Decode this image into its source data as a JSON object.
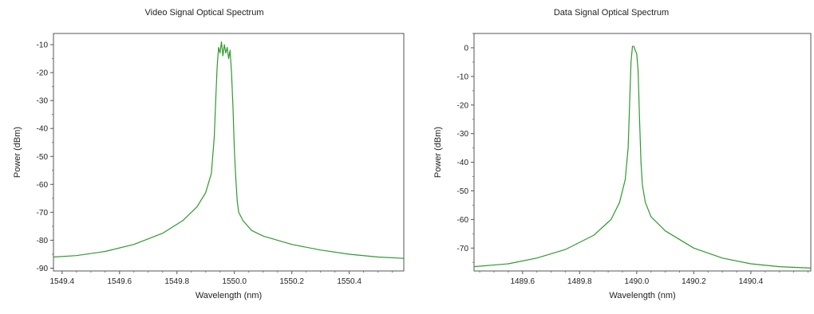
{
  "chart_data": [
    {
      "type": "line",
      "title": "Video Signal Optical Spectrum",
      "xlabel": "Wavelength (nm)",
      "ylabel": "Power (dBm)",
      "xlim": [
        1549.37,
        1550.59
      ],
      "ylim": [
        -91,
        -6
      ],
      "xticks": [
        1549.4,
        1549.6,
        1549.8,
        1550.0,
        1550.2,
        1550.4
      ],
      "xtick_labels": [
        "1549.4",
        "1549.6",
        "1549.8",
        "1550.0",
        "1550.2",
        "1550.4"
      ],
      "yticks": [
        -10,
        -20,
        -30,
        -40,
        -50,
        -60,
        -70,
        -80,
        -90
      ],
      "ytick_labels": [
        "-10",
        "-20",
        "-30",
        "-40",
        "-50",
        "-60",
        "-70",
        "-80",
        "-90"
      ],
      "grid": false,
      "line_color": "#2e9a2e",
      "series": [
        {
          "x": [
            1549.37,
            1549.45,
            1549.55,
            1549.65,
            1549.75,
            1549.82,
            1549.87,
            1549.9,
            1549.92,
            1549.93,
            1549.935,
            1549.94,
            1549.945,
            1549.95,
            1549.955,
            1549.96,
            1549.965,
            1549.97,
            1549.975,
            1549.98,
            1549.985,
            1549.99,
            1549.995,
            1550.0,
            1550.005,
            1550.01,
            1550.015,
            1550.02,
            1550.03,
            1550.06,
            1550.1,
            1550.2,
            1550.3,
            1550.4,
            1550.5,
            1550.59
          ],
          "y": [
            -86,
            -85.5,
            -84,
            -81.5,
            -77.5,
            -73,
            -68,
            -63,
            -56,
            -43,
            -30,
            -18,
            -11,
            -13,
            -9,
            -14,
            -10,
            -13,
            -11,
            -15,
            -12,
            -20,
            -32,
            -48,
            -58,
            -66,
            -70,
            -71,
            -73,
            -76.5,
            -78.5,
            -81.5,
            -83.5,
            -85,
            -86,
            -86.5
          ]
        }
      ]
    },
    {
      "type": "line",
      "title": "Data Signal Optical Spectrum",
      "xlabel": "Wavelength (nm)",
      "ylabel": "Power (dBm)",
      "xlim": [
        1489.43,
        1490.61
      ],
      "ylim": [
        -78,
        5
      ],
      "xticks": [
        1489.6,
        1489.8,
        1490.0,
        1490.2,
        1490.4
      ],
      "xtick_labels": [
        "1489.6",
        "1489.8",
        "1490.0",
        "1490.2",
        "1490.4"
      ],
      "yticks": [
        0,
        -10,
        -20,
        -30,
        -40,
        -50,
        -60,
        -70
      ],
      "ytick_labels": [
        "0",
        "-10",
        "-20",
        "-30",
        "-40",
        "-50",
        "-60",
        "-70"
      ],
      "grid": false,
      "line_color": "#2e9a2e",
      "series": [
        {
          "x": [
            1489.43,
            1489.55,
            1489.65,
            1489.75,
            1489.85,
            1489.91,
            1489.94,
            1489.96,
            1489.97,
            1489.975,
            1489.98,
            1489.985,
            1489.99,
            1489.995,
            1490.0,
            1490.005,
            1490.01,
            1490.015,
            1490.02,
            1490.03,
            1490.05,
            1490.1,
            1490.2,
            1490.3,
            1490.4,
            1490.5,
            1490.61
          ],
          "y": [
            -76.5,
            -75.5,
            -73.5,
            -70.5,
            -65.5,
            -60,
            -54,
            -46,
            -35,
            -20,
            -5,
            0.5,
            0.5,
            -1,
            -2,
            -8,
            -25,
            -40,
            -48,
            -54,
            -59,
            -64,
            -70,
            -73.5,
            -75.5,
            -76.5,
            -77
          ]
        }
      ]
    }
  ]
}
